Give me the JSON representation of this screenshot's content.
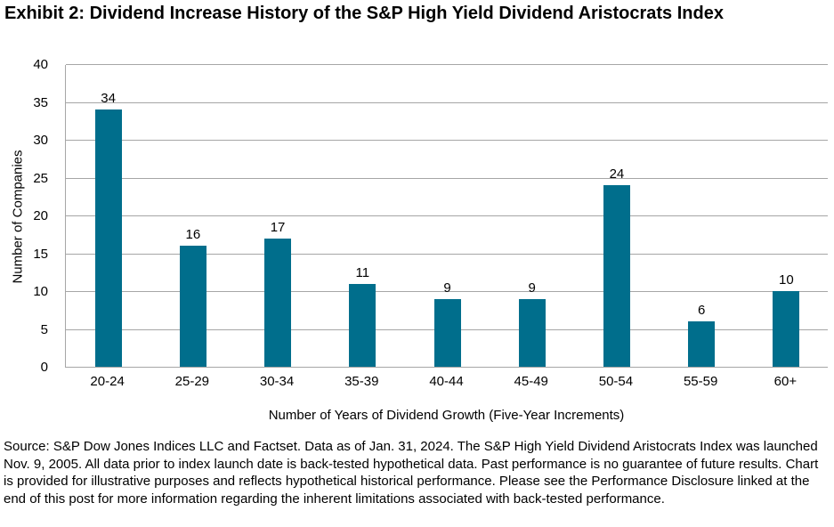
{
  "header": {
    "title": "Exhibit 2: Dividend Increase History of the S&P High Yield Dividend Aristocrats Index"
  },
  "chart_data": {
    "type": "bar",
    "title": "Exhibit 2: Dividend Increase History of the S&P High Yield Dividend Aristocrats Index",
    "categories": [
      "20-24",
      "25-29",
      "30-34",
      "35-39",
      "40-44",
      "45-49",
      "50-54",
      "55-59",
      "60+"
    ],
    "values": [
      34,
      16,
      17,
      11,
      9,
      9,
      24,
      6,
      10
    ],
    "xlabel": "Number of Years of Dividend Growth (Five-Year Increments)",
    "ylabel": "Number of Companies",
    "ylim": [
      0,
      40
    ],
    "yticks": [
      0,
      5,
      10,
      15,
      20,
      25,
      30,
      35,
      40
    ],
    "grid": true,
    "legend": "none",
    "bar_color": "#006e8c",
    "gridline_color": "#a6a6a6"
  },
  "footer": {
    "source_text": "Source: S&P Dow Jones Indices LLC and Factset. Data as of Jan. 31, 2024. The S&P High Yield Dividend Aristocrats Index was launched Nov. 9, 2005. All data prior to index launch date is back-tested hypothetical data. Past performance is no guarantee of future results. Chart is provided for illustrative purposes and reflects hypothetical historical performance. Please see the Performance Disclosure linked at the end of this post for more information regarding the inherent limitations associated with back-tested performance."
  }
}
